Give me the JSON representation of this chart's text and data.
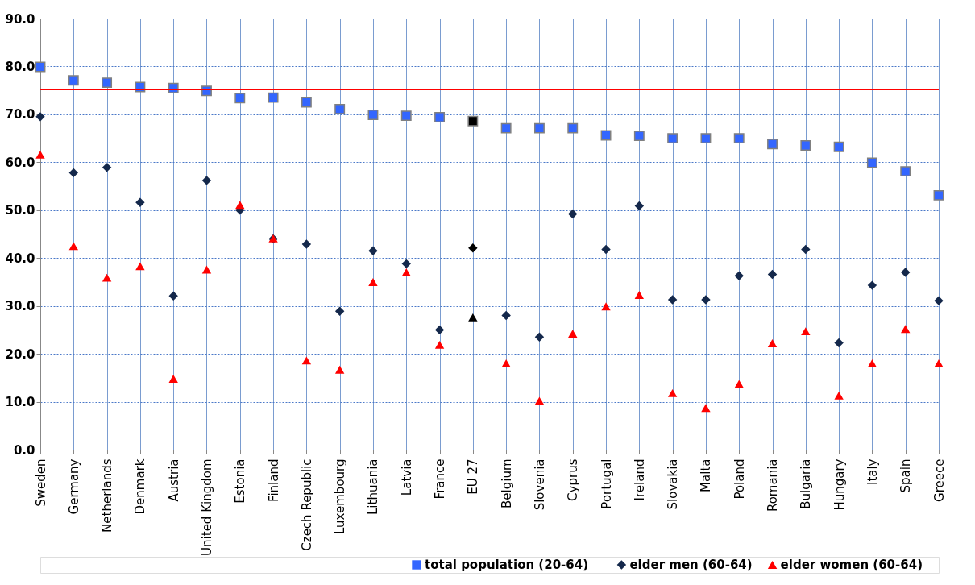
{
  "chart_data": {
    "type": "scatter",
    "categories": [
      "Sweden",
      "Germany",
      "Netherlands",
      "Denmark",
      "Austria",
      "United Kingdom",
      "Estonia",
      "Finland",
      "Czech Republic",
      "Luxembourg",
      "Lithuania",
      "Latvia",
      "France",
      "EU 27",
      "Belgium",
      "Slovenia",
      "Cyprus",
      "Portugal",
      "Ireland",
      "Slovakia",
      "Malta",
      "Poland",
      "Romania",
      "Bulgaria",
      "Hungary",
      "Italy",
      "Spain",
      "Greece"
    ],
    "series": [
      {
        "name": "total population (20-64)",
        "color": "#3366ff",
        "marker": "square",
        "colors": [
          "#3366ff",
          "#3366ff",
          "#3366ff",
          "#3366ff",
          "#3366ff",
          "#3366ff",
          "#3366ff",
          "#3366ff",
          "#3366ff",
          "#3366ff",
          "#3366ff",
          "#3366ff",
          "#3366ff",
          "#000000",
          "#3366ff",
          "#3366ff",
          "#3366ff",
          "#3366ff",
          "#3366ff",
          "#3366ff",
          "#3366ff",
          "#3366ff",
          "#3366ff",
          "#3366ff",
          "#3366ff",
          "#3366ff",
          "#3366ff",
          "#3366ff"
        ],
        "values": [
          79.9,
          77.1,
          76.6,
          75.7,
          75.5,
          74.9,
          73.4,
          73.5,
          72.5,
          71.1,
          69.9,
          69.7,
          69.4,
          68.6,
          67.1,
          67.1,
          67.1,
          65.6,
          65.5,
          65.0,
          65.0,
          65.0,
          63.8,
          63.5,
          63.2,
          59.9,
          58.1,
          53.1
        ]
      },
      {
        "name": "elder men (60-64)",
        "color": "#14284b",
        "marker": "diamond",
        "colors": [
          "#14284b",
          "#14284b",
          "#14284b",
          "#14284b",
          "#14284b",
          "#14284b",
          "#14284b",
          "#14284b",
          "#14284b",
          "#14284b",
          "#14284b",
          "#14284b",
          "#14284b",
          "#000000",
          "#14284b",
          "#14284b",
          "#14284b",
          "#14284b",
          "#14284b",
          "#14284b",
          "#14284b",
          "#14284b",
          "#14284b",
          "#14284b",
          "#14284b",
          "#14284b",
          "#14284b",
          "#14284b"
        ],
        "values": [
          69.5,
          57.8,
          58.9,
          51.6,
          32.1,
          56.2,
          50.0,
          44.0,
          42.9,
          28.9,
          41.5,
          38.8,
          25.0,
          42.1,
          28.0,
          23.5,
          49.2,
          41.8,
          50.9,
          31.3,
          31.3,
          36.3,
          36.6,
          41.8,
          22.3,
          34.3,
          37.0,
          31.1
        ]
      },
      {
        "name": "elder women (60-64)",
        "color": "#ff0000",
        "marker": "triangle",
        "colors": [
          "#ff0000",
          "#ff0000",
          "#ff0000",
          "#ff0000",
          "#ff0000",
          "#ff0000",
          "#ff0000",
          "#ff0000",
          "#ff0000",
          "#ff0000",
          "#ff0000",
          "#ff0000",
          "#ff0000",
          "#000000",
          "#ff0000",
          "#ff0000",
          "#ff0000",
          "#ff0000",
          "#ff0000",
          "#ff0000",
          "#ff0000",
          "#ff0000",
          "#ff0000",
          "#ff0000",
          "#ff0000",
          "#ff0000",
          "#ff0000",
          "#ff0000"
        ],
        "values": [
          61.6,
          42.5,
          35.9,
          38.3,
          14.8,
          37.6,
          51.1,
          44.1,
          18.6,
          16.7,
          35.0,
          37.0,
          21.9,
          27.6,
          18.0,
          10.2,
          24.2,
          29.9,
          32.3,
          11.8,
          8.7,
          13.7,
          22.2,
          24.7,
          11.3,
          18.0,
          25.2,
          18.0
        ]
      }
    ],
    "ylim": [
      0,
      90
    ],
    "yticks": [
      {
        "value": 0,
        "label": "0.0"
      },
      {
        "value": 10,
        "label": "10.0"
      },
      {
        "value": 20,
        "label": "20.0"
      },
      {
        "value": 30,
        "label": "30.0"
      },
      {
        "value": 40,
        "label": "40.0"
      },
      {
        "value": 50,
        "label": "50.0"
      },
      {
        "value": 60,
        "label": "60.0"
      },
      {
        "value": 70,
        "label": "70.0"
      },
      {
        "value": 80,
        "label": "80.0"
      },
      {
        "value": 90,
        "label": "90.0"
      }
    ],
    "ref_lines": [
      {
        "axis": "y",
        "value": 75.2,
        "color": "#ff0000"
      }
    ],
    "grid": true,
    "legend": "bottom right"
  }
}
